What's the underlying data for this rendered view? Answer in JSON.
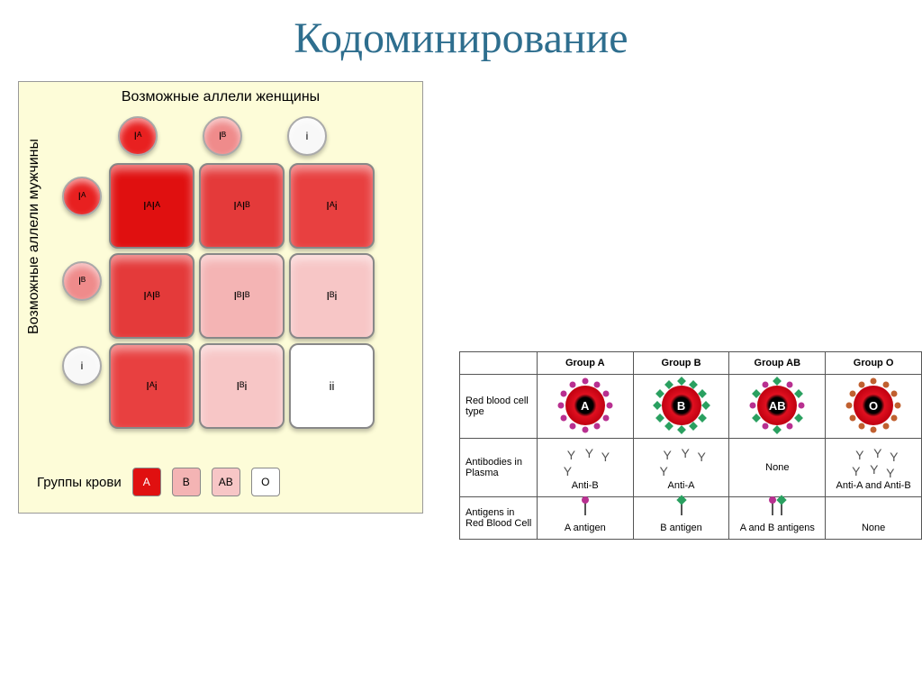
{
  "title": "Кодоминирование",
  "punnett": {
    "top_label": "Возможные аллели женщины",
    "side_label": "Возможные аллели мужчины",
    "col_alleles": [
      {
        "label": "Iᴬ",
        "bg": "#e82020"
      },
      {
        "label": "Iᴮ",
        "bg": "#ef8b8b"
      },
      {
        "label": "i",
        "bg": "#f8f8f8"
      }
    ],
    "row_alleles": [
      {
        "label": "Iᴬ",
        "bg": "#e82020"
      },
      {
        "label": "Iᴮ",
        "bg": "#ef8b8b"
      },
      {
        "label": "i",
        "bg": "#f8f8f8"
      }
    ],
    "cells": [
      {
        "label": "IᴬIᴬ",
        "bg": "#e01010"
      },
      {
        "label": "IᴬIᴮ",
        "bg": "#e43a3a"
      },
      {
        "label": "Iᴬi",
        "bg": "#e84040"
      },
      {
        "label": "IᴬIᴮ",
        "bg": "#e43a3a"
      },
      {
        "label": "IᴮIᴮ",
        "bg": "#f4b4b4"
      },
      {
        "label": "Iᴮi",
        "bg": "#f7c6c6"
      },
      {
        "label": "Iᴬi",
        "bg": "#e84040"
      },
      {
        "label": "Iᴮi",
        "bg": "#f7c6c6"
      },
      {
        "label": "ii",
        "bg": "#ffffff"
      }
    ],
    "legend_label": "Группы крови",
    "legend": [
      {
        "label": "A",
        "bg": "#e01010",
        "text_color": "#ffffff"
      },
      {
        "label": "B",
        "bg": "#f4b4b4",
        "text_color": "#000000"
      },
      {
        "label": "AB",
        "bg": "#f7c6c6",
        "text_color": "#000000"
      },
      {
        "label": "O",
        "bg": "#ffffff",
        "text_color": "#000000"
      }
    ]
  },
  "blood_table": {
    "columns": [
      "Group A",
      "Group B",
      "Group AB",
      "Group O"
    ],
    "rows": [
      {
        "header": "Red blood cell type",
        "type": "rbc"
      },
      {
        "header": "Antibodies in Plasma",
        "type": "antibody"
      },
      {
        "header": "Antigens in Red Blood Cell",
        "type": "antigen"
      }
    ],
    "rbc_labels": [
      "A",
      "B",
      "AB",
      "O"
    ],
    "antigen_color_a": "#b83090",
    "antigen_color_b": "#2aa060",
    "antigen_color_o": "#c06030",
    "rbc_antigens": [
      {
        "colors": [
          "a"
        ]
      },
      {
        "colors": [
          "b"
        ]
      },
      {
        "colors": [
          "a",
          "b"
        ]
      },
      {
        "colors": [
          "o"
        ]
      }
    ],
    "antibody_labels": [
      "Anti-B",
      "Anti-A",
      "None",
      "Anti-A and Anti-B"
    ],
    "antigen_row_labels": [
      "A antigen",
      "B antigen",
      "A and B antigens",
      "None"
    ],
    "antigen_row_colors": [
      [
        "a"
      ],
      [
        "b"
      ],
      [
        "a",
        "b"
      ],
      []
    ]
  },
  "colors": {
    "title_color": "#2e6e8e",
    "panel_bg": "#fdfcd8"
  }
}
